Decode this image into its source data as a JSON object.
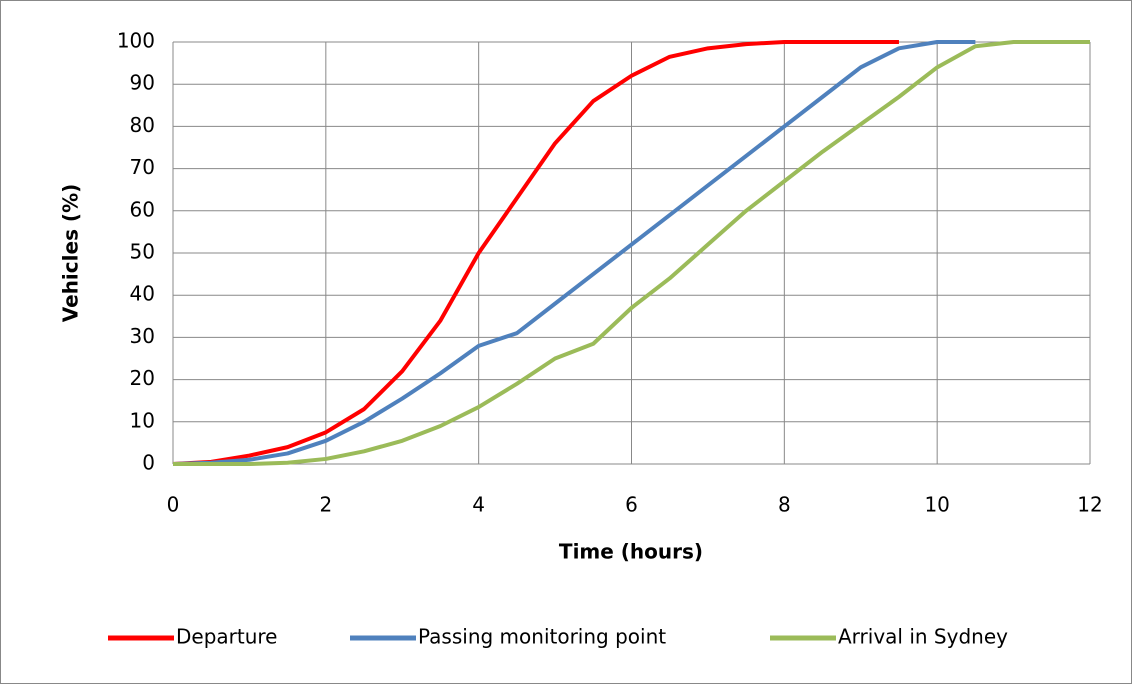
{
  "chart_data": {
    "type": "line",
    "x_label": "Time (hours)",
    "y_label": "Vehicles (%)",
    "x": [
      0,
      0.5,
      1,
      1.5,
      2,
      2.5,
      3,
      3.5,
      4,
      4.5,
      5,
      5.5,
      6,
      6.5,
      7,
      7.5,
      8,
      8.5,
      9,
      9.5,
      10,
      10.5,
      11,
      11.5,
      12
    ],
    "series": [
      {
        "name": "Departure",
        "color": "#ff0000",
        "values": [
          0,
          0.5,
          2,
          4,
          7.5,
          13,
          22,
          34,
          50,
          63,
          76,
          86,
          92,
          96.5,
          98.5,
          99.5,
          100,
          100,
          100,
          100,
          null,
          null,
          null,
          null,
          null
        ]
      },
      {
        "name": "Passing monitoring point",
        "color": "#4f81bd",
        "values": [
          0,
          0.3,
          1,
          2.5,
          5.5,
          10,
          15.5,
          21.5,
          28,
          31,
          38,
          45,
          52,
          59,
          66,
          73,
          80,
          87,
          94,
          98.5,
          100,
          100,
          null,
          null,
          null
        ]
      },
      {
        "name": "Arrival in Sydney",
        "color": "#9bbb59",
        "values": [
          0,
          0,
          0,
          0.3,
          1.2,
          3,
          5.5,
          9,
          13.5,
          19,
          25,
          28.5,
          37,
          44,
          52,
          60,
          67,
          74,
          80.5,
          87,
          94,
          99,
          100,
          100,
          100
        ]
      }
    ],
    "xlim": [
      0,
      12
    ],
    "xticks": [
      0,
      2,
      4,
      6,
      8,
      10,
      12
    ],
    "ylim": [
      0,
      100
    ],
    "yticks": [
      0,
      10,
      20,
      30,
      40,
      50,
      60,
      70,
      80,
      90,
      100
    ],
    "grid": true,
    "legend": "bottom"
  }
}
